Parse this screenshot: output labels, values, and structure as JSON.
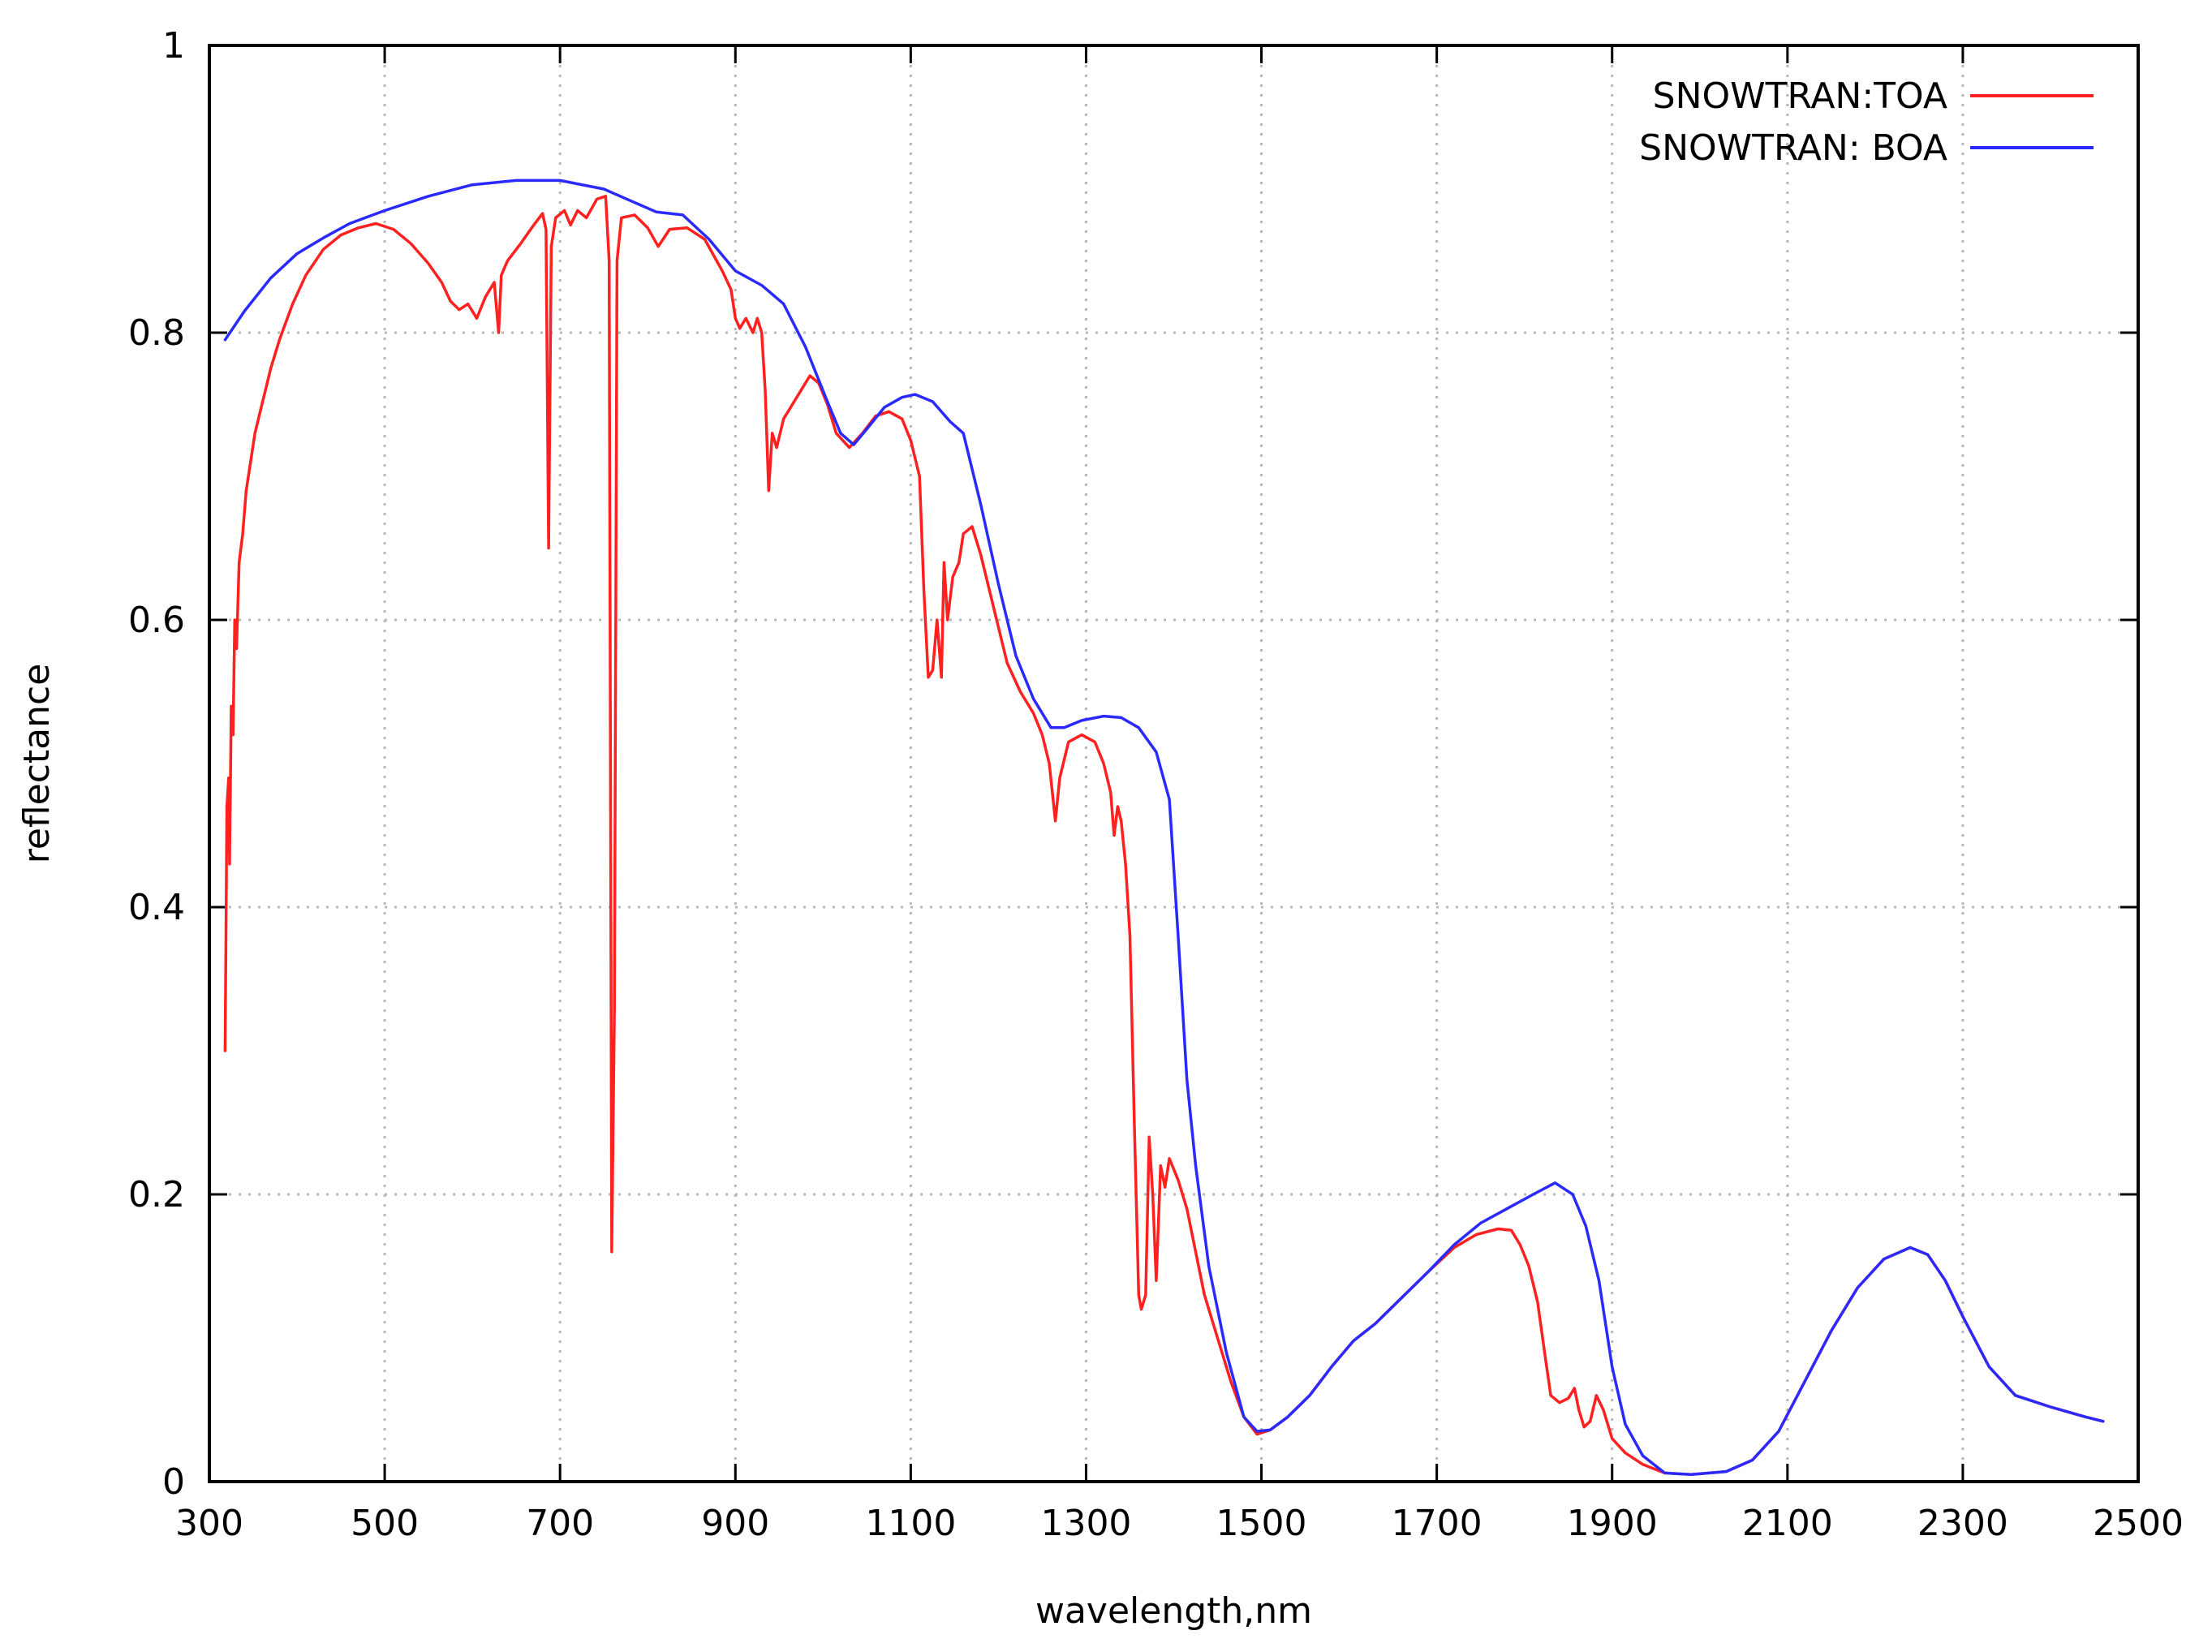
{
  "chart_data": {
    "type": "line",
    "title": "",
    "xlabel": "wavelength,nm",
    "ylabel": "reflectance",
    "xlim": [
      300,
      2500
    ],
    "ylim": [
      0,
      1
    ],
    "x_ticks": [
      300,
      500,
      700,
      900,
      1100,
      1300,
      1500,
      1700,
      1900,
      2100,
      2300,
      2500
    ],
    "y_ticks": [
      0,
      0.2,
      0.4,
      0.6,
      0.8,
      1
    ],
    "x_tick_labels": [
      "300",
      "500",
      "700",
      "900",
      "1100",
      "1300",
      "1500",
      "1700",
      "1900",
      "2100",
      "2300",
      "2500"
    ],
    "y_tick_labels": [
      "0",
      "0.2",
      "0.4",
      "0.6",
      "0.8",
      "1"
    ],
    "grid": true,
    "legend_position": "top-right",
    "series": [
      {
        "name": "SNOWTRAN:TOA",
        "color": "#ff2020",
        "points": [
          [
            318,
            0.3
          ],
          [
            319,
            0.38
          ],
          [
            320,
            0.47
          ],
          [
            322,
            0.49
          ],
          [
            323,
            0.43
          ],
          [
            325,
            0.54
          ],
          [
            327,
            0.52
          ],
          [
            329,
            0.6
          ],
          [
            331,
            0.58
          ],
          [
            334,
            0.64
          ],
          [
            338,
            0.66
          ],
          [
            342,
            0.69
          ],
          [
            347,
            0.71
          ],
          [
            352,
            0.73
          ],
          [
            360,
            0.75
          ],
          [
            370,
            0.775
          ],
          [
            380,
            0.795
          ],
          [
            395,
            0.82
          ],
          [
            410,
            0.84
          ],
          [
            430,
            0.858
          ],
          [
            450,
            0.868
          ],
          [
            470,
            0.873
          ],
          [
            490,
            0.876
          ],
          [
            510,
            0.872
          ],
          [
            530,
            0.862
          ],
          [
            550,
            0.848
          ],
          [
            565,
            0.835
          ],
          [
            575,
            0.822
          ],
          [
            585,
            0.816
          ],
          [
            595,
            0.82
          ],
          [
            605,
            0.81
          ],
          [
            615,
            0.825
          ],
          [
            625,
            0.835
          ],
          [
            630,
            0.8
          ],
          [
            633,
            0.84
          ],
          [
            640,
            0.85
          ],
          [
            655,
            0.862
          ],
          [
            670,
            0.875
          ],
          [
            680,
            0.883
          ],
          [
            684,
            0.872
          ],
          [
            687,
            0.65
          ],
          [
            690,
            0.86
          ],
          [
            695,
            0.88
          ],
          [
            705,
            0.885
          ],
          [
            712,
            0.875
          ],
          [
            720,
            0.885
          ],
          [
            730,
            0.88
          ],
          [
            742,
            0.893
          ],
          [
            752,
            0.895
          ],
          [
            756,
            0.85
          ],
          [
            759,
            0.16
          ],
          [
            762,
            0.33
          ],
          [
            765,
            0.85
          ],
          [
            770,
            0.88
          ],
          [
            785,
            0.882
          ],
          [
            800,
            0.873
          ],
          [
            812,
            0.86
          ],
          [
            825,
            0.872
          ],
          [
            845,
            0.873
          ],
          [
            865,
            0.865
          ],
          [
            885,
            0.843
          ],
          [
            895,
            0.83
          ],
          [
            900,
            0.81
          ],
          [
            905,
            0.803
          ],
          [
            912,
            0.81
          ],
          [
            920,
            0.8
          ],
          [
            925,
            0.81
          ],
          [
            930,
            0.8
          ],
          [
            934,
            0.76
          ],
          [
            938,
            0.69
          ],
          [
            942,
            0.73
          ],
          [
            947,
            0.72
          ],
          [
            955,
            0.74
          ],
          [
            965,
            0.75
          ],
          [
            975,
            0.76
          ],
          [
            985,
            0.77
          ],
          [
            995,
            0.765
          ],
          [
            1005,
            0.75
          ],
          [
            1015,
            0.73
          ],
          [
            1030,
            0.72
          ],
          [
            1045,
            0.73
          ],
          [
            1060,
            0.742
          ],
          [
            1075,
            0.745
          ],
          [
            1090,
            0.74
          ],
          [
            1100,
            0.725
          ],
          [
            1110,
            0.7
          ],
          [
            1115,
            0.62
          ],
          [
            1120,
            0.56
          ],
          [
            1125,
            0.565
          ],
          [
            1130,
            0.6
          ],
          [
            1135,
            0.56
          ],
          [
            1138,
            0.64
          ],
          [
            1142,
            0.6
          ],
          [
            1148,
            0.63
          ],
          [
            1155,
            0.64
          ],
          [
            1160,
            0.66
          ],
          [
            1170,
            0.665
          ],
          [
            1180,
            0.645
          ],
          [
            1190,
            0.62
          ],
          [
            1200,
            0.595
          ],
          [
            1210,
            0.57
          ],
          [
            1225,
            0.55
          ],
          [
            1240,
            0.535
          ],
          [
            1250,
            0.52
          ],
          [
            1258,
            0.5
          ],
          [
            1265,
            0.46
          ],
          [
            1270,
            0.49
          ],
          [
            1280,
            0.515
          ],
          [
            1295,
            0.52
          ],
          [
            1310,
            0.515
          ],
          [
            1320,
            0.5
          ],
          [
            1328,
            0.48
          ],
          [
            1332,
            0.45
          ],
          [
            1336,
            0.47
          ],
          [
            1340,
            0.46
          ],
          [
            1345,
            0.43
          ],
          [
            1350,
            0.38
          ],
          [
            1355,
            0.25
          ],
          [
            1360,
            0.13
          ],
          [
            1363,
            0.12
          ],
          [
            1368,
            0.13
          ],
          [
            1372,
            0.24
          ],
          [
            1376,
            0.2
          ],
          [
            1380,
            0.14
          ],
          [
            1385,
            0.22
          ],
          [
            1390,
            0.205
          ],
          [
            1395,
            0.225
          ],
          [
            1405,
            0.21
          ],
          [
            1415,
            0.19
          ],
          [
            1425,
            0.16
          ],
          [
            1435,
            0.13
          ],
          [
            1450,
            0.1
          ],
          [
            1465,
            0.07
          ],
          [
            1480,
            0.045
          ],
          [
            1495,
            0.033
          ],
          [
            1510,
            0.036
          ],
          [
            1530,
            0.045
          ],
          [
            1555,
            0.06
          ],
          [
            1580,
            0.08
          ],
          [
            1605,
            0.098
          ],
          [
            1630,
            0.11
          ],
          [
            1660,
            0.128
          ],
          [
            1690,
            0.146
          ],
          [
            1720,
            0.163
          ],
          [
            1745,
            0.172
          ],
          [
            1770,
            0.176
          ],
          [
            1785,
            0.175
          ],
          [
            1795,
            0.165
          ],
          [
            1805,
            0.15
          ],
          [
            1815,
            0.125
          ],
          [
            1823,
            0.09
          ],
          [
            1830,
            0.06
          ],
          [
            1840,
            0.055
          ],
          [
            1850,
            0.058
          ],
          [
            1857,
            0.065
          ],
          [
            1862,
            0.05
          ],
          [
            1868,
            0.038
          ],
          [
            1875,
            0.042
          ],
          [
            1882,
            0.06
          ],
          [
            1890,
            0.05
          ],
          [
            1900,
            0.03
          ],
          [
            1915,
            0.02
          ],
          [
            1935,
            0.012
          ],
          [
            1960,
            0.006
          ],
          [
            1990,
            0.005
          ],
          [
            2030,
            0.007
          ],
          [
            2060,
            0.015
          ],
          [
            2090,
            0.035
          ],
          [
            2120,
            0.07
          ],
          [
            2150,
            0.105
          ],
          [
            2180,
            0.135
          ],
          [
            2210,
            0.155
          ],
          [
            2240,
            0.163
          ],
          [
            2260,
            0.158
          ],
          [
            2280,
            0.14
          ],
          [
            2300,
            0.115
          ],
          [
            2330,
            0.08
          ],
          [
            2360,
            0.06
          ],
          [
            2400,
            0.052
          ],
          [
            2440,
            0.045
          ],
          [
            2460,
            0.042
          ]
        ]
      },
      {
        "name": "SNOWTRAN: BOA",
        "color": "#2a2aff",
        "points": [
          [
            318,
            0.795
          ],
          [
            340,
            0.815
          ],
          [
            370,
            0.838
          ],
          [
            400,
            0.855
          ],
          [
            430,
            0.866
          ],
          [
            460,
            0.876
          ],
          [
            500,
            0.885
          ],
          [
            550,
            0.895
          ],
          [
            600,
            0.903
          ],
          [
            650,
            0.906
          ],
          [
            700,
            0.906
          ],
          [
            750,
            0.9
          ],
          [
            780,
            0.892
          ],
          [
            810,
            0.884
          ],
          [
            840,
            0.882
          ],
          [
            870,
            0.865
          ],
          [
            900,
            0.843
          ],
          [
            930,
            0.833
          ],
          [
            955,
            0.82
          ],
          [
            980,
            0.79
          ],
          [
            1005,
            0.752
          ],
          [
            1020,
            0.73
          ],
          [
            1035,
            0.722
          ],
          [
            1050,
            0.733
          ],
          [
            1070,
            0.748
          ],
          [
            1090,
            0.755
          ],
          [
            1105,
            0.757
          ],
          [
            1125,
            0.752
          ],
          [
            1145,
            0.738
          ],
          [
            1160,
            0.73
          ],
          [
            1180,
            0.68
          ],
          [
            1200,
            0.625
          ],
          [
            1220,
            0.575
          ],
          [
            1240,
            0.545
          ],
          [
            1260,
            0.525
          ],
          [
            1275,
            0.525
          ],
          [
            1295,
            0.53
          ],
          [
            1320,
            0.533
          ],
          [
            1340,
            0.532
          ],
          [
            1360,
            0.525
          ],
          [
            1380,
            0.508
          ],
          [
            1395,
            0.475
          ],
          [
            1405,
            0.38
          ],
          [
            1415,
            0.28
          ],
          [
            1425,
            0.22
          ],
          [
            1440,
            0.15
          ],
          [
            1460,
            0.09
          ],
          [
            1480,
            0.045
          ],
          [
            1495,
            0.035
          ],
          [
            1510,
            0.036
          ],
          [
            1530,
            0.045
          ],
          [
            1555,
            0.06
          ],
          [
            1580,
            0.08
          ],
          [
            1605,
            0.098
          ],
          [
            1630,
            0.11
          ],
          [
            1660,
            0.128
          ],
          [
            1690,
            0.146
          ],
          [
            1720,
            0.165
          ],
          [
            1750,
            0.18
          ],
          [
            1780,
            0.19
          ],
          [
            1810,
            0.2
          ],
          [
            1835,
            0.208
          ],
          [
            1855,
            0.2
          ],
          [
            1870,
            0.178
          ],
          [
            1885,
            0.14
          ],
          [
            1900,
            0.08
          ],
          [
            1915,
            0.04
          ],
          [
            1935,
            0.018
          ],
          [
            1960,
            0.006
          ],
          [
            1990,
            0.005
          ],
          [
            2030,
            0.007
          ],
          [
            2060,
            0.015
          ],
          [
            2090,
            0.035
          ],
          [
            2120,
            0.07
          ],
          [
            2150,
            0.105
          ],
          [
            2180,
            0.135
          ],
          [
            2210,
            0.155
          ],
          [
            2240,
            0.163
          ],
          [
            2260,
            0.158
          ],
          [
            2280,
            0.14
          ],
          [
            2300,
            0.115
          ],
          [
            2330,
            0.08
          ],
          [
            2360,
            0.06
          ],
          [
            2400,
            0.052
          ],
          [
            2440,
            0.045
          ],
          [
            2460,
            0.042
          ]
        ]
      }
    ]
  }
}
